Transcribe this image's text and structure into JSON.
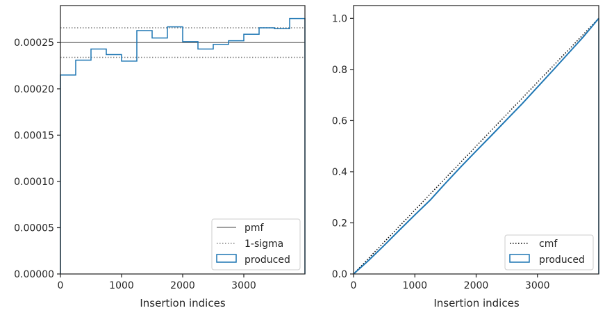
{
  "chart_data": [
    {
      "type": "line",
      "xlabel": "Insertion indices",
      "ylabel": "",
      "xlim": [
        0,
        4000
      ],
      "ylim": [
        0,
        0.00029
      ],
      "xticks": [
        0,
        1000,
        2000,
        3000
      ],
      "xtick_labels": [
        "0",
        "1000",
        "2000",
        "3000"
      ],
      "yticks": [
        0,
        5e-05,
        0.0001,
        0.00015,
        0.0002,
        0.00025
      ],
      "ytick_labels": [
        "0.00000",
        "0.00005",
        "0.00010",
        "0.00015",
        "0.00020",
        "0.00025"
      ],
      "legend_position": "lower-right",
      "legend": [
        "pmf",
        "1-sigma",
        "produced"
      ],
      "pmf": 0.00025,
      "sigma_upper": 0.000266,
      "sigma_lower": 0.000234,
      "histogram": {
        "name": "produced",
        "bin_edges": [
          0,
          250,
          500,
          750,
          1000,
          1250,
          1500,
          1750,
          2000,
          2250,
          2500,
          2750,
          3000,
          3250,
          3500,
          3750,
          4000
        ],
        "values": [
          0.000215,
          0.000231,
          0.000243,
          0.000237,
          0.00023,
          0.000263,
          0.000255,
          0.000267,
          0.000251,
          0.000243,
          0.000248,
          0.000252,
          0.000259,
          0.000266,
          0.000265,
          0.000276
        ]
      },
      "colors": {
        "pmf": "#808080",
        "sigma": "#808080",
        "produced": "#1f77b4"
      }
    },
    {
      "type": "line",
      "xlabel": "Insertion indices",
      "ylabel": "",
      "xlim": [
        0,
        4000
      ],
      "ylim": [
        0,
        1.05
      ],
      "xticks": [
        0,
        1000,
        2000,
        3000
      ],
      "xtick_labels": [
        "0",
        "1000",
        "2000",
        "3000"
      ],
      "yticks": [
        0,
        0.2,
        0.4,
        0.6,
        0.8,
        1.0
      ],
      "ytick_labels": [
        "0.0",
        "0.2",
        "0.4",
        "0.6",
        "0.8",
        "1.0"
      ],
      "legend_position": "lower-right",
      "legend": [
        "cmf",
        "produced"
      ],
      "cmf": {
        "x": [
          0,
          4000
        ],
        "y": [
          0,
          1
        ]
      },
      "produced": {
        "x": [
          0,
          250,
          500,
          750,
          1000,
          1250,
          1500,
          1750,
          2000,
          2250,
          2500,
          2750,
          3000,
          3250,
          3500,
          3750,
          4000
        ],
        "y": [
          0,
          0.054,
          0.112,
          0.172,
          0.231,
          0.289,
          0.355,
          0.419,
          0.481,
          0.542,
          0.604,
          0.666,
          0.731,
          0.796,
          0.862,
          0.928,
          1.0
        ]
      },
      "colors": {
        "cmf": "#000000",
        "produced": "#1f77b4"
      }
    }
  ]
}
